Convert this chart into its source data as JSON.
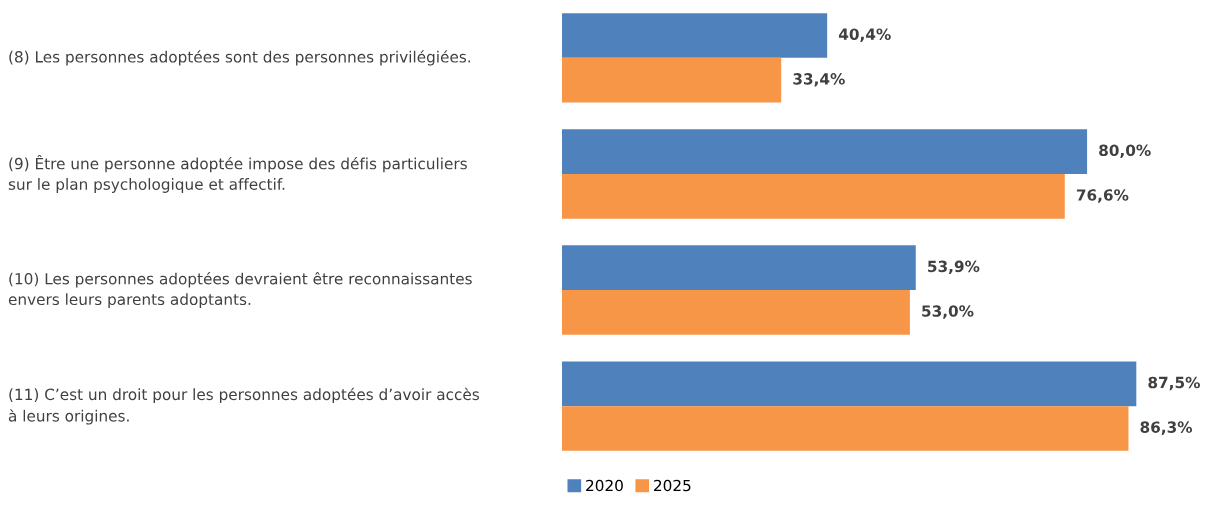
{
  "chart_data": {
    "type": "bar",
    "orientation": "horizontal",
    "categories": [
      "(8) Les personnes adoptées sont des personnes privilégiées.",
      "(9) Être une personne adoptée impose des défis particuliers\nsur le plan psychologique et affectif.",
      "(10) Les personnes adoptées devraient être reconnaissantes\nenvers leurs parents adoptants.",
      "(11) C’est un droit pour les personnes adoptées d’avoir accès\nà leurs origines."
    ],
    "series": [
      {
        "name": "2020",
        "color": "#4f81bd",
        "values": [
          40.4,
          80.0,
          53.9,
          87.5
        ],
        "value_labels": [
          "40,4%",
          "80,0%",
          "53,9%",
          "87,5%"
        ]
      },
      {
        "name": "2025",
        "color": "#f79646",
        "values": [
          33.4,
          76.6,
          53.0,
          86.3
        ],
        "value_labels": [
          "33,4%",
          "76,6%",
          "53,0%",
          "86,3%"
        ]
      }
    ],
    "legend": "bottom"
  }
}
